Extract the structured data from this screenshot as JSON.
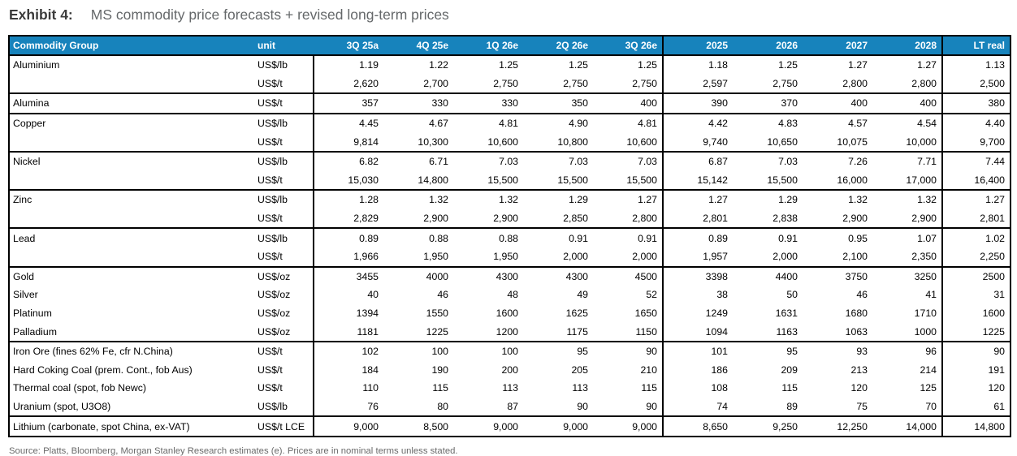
{
  "page": {
    "exhibit_label": "Exhibit 4:",
    "title": "MS commodity price forecasts + revised long-term prices"
  },
  "colors": {
    "header_bg": "#1783BC",
    "header_text": "#FFFFFF",
    "border": "#000000",
    "exhibit_label_text": "#3B3B3B",
    "title_text": "#65686A",
    "source_text": "#6A6A6A"
  },
  "table": {
    "columns": [
      {
        "key": "commodity",
        "label": "Commodity Group"
      },
      {
        "key": "unit",
        "label": "unit"
      },
      {
        "key": "3q25a",
        "label": "3Q 25a"
      },
      {
        "key": "4q25e",
        "label": "4Q 25e"
      },
      {
        "key": "1q26e",
        "label": "1Q 26e"
      },
      {
        "key": "2q26e",
        "label": "2Q 26e"
      },
      {
        "key": "3q26e",
        "label": "3Q 26e"
      },
      {
        "key": "2025",
        "label": "2025"
      },
      {
        "key": "2026",
        "label": "2026"
      },
      {
        "key": "2027",
        "label": "2027"
      },
      {
        "key": "2028",
        "label": "2028"
      },
      {
        "key": "lt_real",
        "label": "LT real"
      }
    ],
    "rows": [
      {
        "label": "Aluminium",
        "unit": "US$/lb",
        "section_start": true,
        "values": [
          "1.19",
          "1.22",
          "1.25",
          "1.25",
          "1.25",
          "1.18",
          "1.25",
          "1.27",
          "1.27",
          "1.13"
        ]
      },
      {
        "label": "",
        "unit": "US$/t",
        "section_start": false,
        "values": [
          "2,620",
          "2,700",
          "2,750",
          "2,750",
          "2,750",
          "2,597",
          "2,750",
          "2,800",
          "2,800",
          "2,500"
        ]
      },
      {
        "label": "Alumina",
        "unit": "US$/t",
        "section_start": true,
        "values": [
          "357",
          "330",
          "330",
          "350",
          "400",
          "390",
          "370",
          "400",
          "400",
          "380"
        ]
      },
      {
        "label": "Copper",
        "unit": "US$/lb",
        "section_start": true,
        "values": [
          "4.45",
          "4.67",
          "4.81",
          "4.90",
          "4.81",
          "4.42",
          "4.83",
          "4.57",
          "4.54",
          "4.40"
        ]
      },
      {
        "label": "",
        "unit": "US$/t",
        "section_start": false,
        "values": [
          "9,814",
          "10,300",
          "10,600",
          "10,800",
          "10,600",
          "9,740",
          "10,650",
          "10,075",
          "10,000",
          "9,700"
        ]
      },
      {
        "label": "Nickel",
        "unit": "US$/lb",
        "section_start": true,
        "values": [
          "6.82",
          "6.71",
          "7.03",
          "7.03",
          "7.03",
          "6.87",
          "7.03",
          "7.26",
          "7.71",
          "7.44"
        ]
      },
      {
        "label": "",
        "unit": "US$/t",
        "section_start": false,
        "values": [
          "15,030",
          "14,800",
          "15,500",
          "15,500",
          "15,500",
          "15,142",
          "15,500",
          "16,000",
          "17,000",
          "16,400"
        ]
      },
      {
        "label": "Zinc",
        "unit": "US$/lb",
        "section_start": true,
        "values": [
          "1.28",
          "1.32",
          "1.32",
          "1.29",
          "1.27",
          "1.27",
          "1.29",
          "1.32",
          "1.32",
          "1.27"
        ]
      },
      {
        "label": "",
        "unit": "US$/t",
        "section_start": false,
        "values": [
          "2,829",
          "2,900",
          "2,900",
          "2,850",
          "2,800",
          "2,801",
          "2,838",
          "2,900",
          "2,900",
          "2,801"
        ]
      },
      {
        "label": "Lead",
        "unit": "US$/lb",
        "section_start": true,
        "values": [
          "0.89",
          "0.88",
          "0.88",
          "0.91",
          "0.91",
          "0.89",
          "0.91",
          "0.95",
          "1.07",
          "1.02"
        ]
      },
      {
        "label": "",
        "unit": "US$/t",
        "section_start": false,
        "values": [
          "1,966",
          "1,950",
          "1,950",
          "2,000",
          "2,000",
          "1,957",
          "2,000",
          "2,100",
          "2,350",
          "2,250"
        ]
      },
      {
        "label": "Gold",
        "unit": "US$/oz",
        "section_start": true,
        "values": [
          "3455",
          "4000",
          "4300",
          "4300",
          "4500",
          "3398",
          "4400",
          "3750",
          "3250",
          "2500"
        ]
      },
      {
        "label": "Silver",
        "unit": "US$/oz",
        "section_start": false,
        "values": [
          "40",
          "46",
          "48",
          "49",
          "52",
          "38",
          "50",
          "46",
          "41",
          "31"
        ]
      },
      {
        "label": "Platinum",
        "unit": "US$/oz",
        "section_start": false,
        "values": [
          "1394",
          "1550",
          "1600",
          "1625",
          "1650",
          "1249",
          "1631",
          "1680",
          "1710",
          "1600"
        ]
      },
      {
        "label": "Palladium",
        "unit": "US$/oz",
        "section_start": false,
        "values": [
          "1181",
          "1225",
          "1200",
          "1175",
          "1150",
          "1094",
          "1163",
          "1063",
          "1000",
          "1225"
        ]
      },
      {
        "label": "Iron Ore (fines 62% Fe, cfr N.China)",
        "unit": "US$/t",
        "section_start": true,
        "values": [
          "102",
          "100",
          "100",
          "95",
          "90",
          "101",
          "95",
          "93",
          "96",
          "90"
        ]
      },
      {
        "label": "Hard Coking Coal (prem. Cont., fob Aus)",
        "unit": "US$/t",
        "section_start": false,
        "values": [
          "184",
          "190",
          "200",
          "205",
          "210",
          "186",
          "209",
          "213",
          "214",
          "191"
        ]
      },
      {
        "label": "Thermal coal (spot, fob Newc)",
        "unit": "US$/t",
        "section_start": false,
        "values": [
          "110",
          "115",
          "113",
          "113",
          "115",
          "108",
          "115",
          "120",
          "125",
          "120"
        ]
      },
      {
        "label": "Uranium (spot, U3O8)",
        "unit": "US$/lb",
        "section_start": false,
        "values": [
          "76",
          "80",
          "87",
          "90",
          "90",
          "74",
          "89",
          "75",
          "70",
          "61"
        ]
      },
      {
        "label": "Lithium (carbonate, spot China, ex-VAT)",
        "unit": "US$/t LCE",
        "section_start": true,
        "values": [
          "9,000",
          "8,500",
          "9,000",
          "9,000",
          "9,000",
          "8,650",
          "9,250",
          "12,250",
          "14,000",
          "14,800"
        ]
      }
    ]
  },
  "footer": {
    "source": "Source: Platts, Bloomberg, Morgan Stanley Research estimates (e). Prices are in nominal terms unless stated."
  }
}
